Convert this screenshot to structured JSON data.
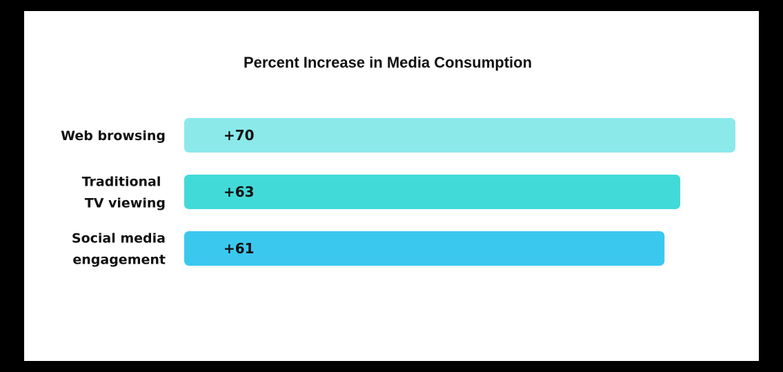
{
  "chart_data": {
    "type": "bar",
    "orientation": "horizontal",
    "title": "Percent Increase in Media Consumption",
    "categories": [
      [
        "Web browsing"
      ],
      [
        "Traditional ",
        "TV viewing"
      ],
      [
        "Social media",
        "engagement"
      ]
    ],
    "values": [
      70,
      63,
      61
    ],
    "value_labels": [
      "+70",
      "+63",
      "+61"
    ],
    "colors": [
      "#8BE9EA",
      "#41DAD8",
      "#3BC8EF"
    ],
    "xlim": [
      0,
      70
    ],
    "xlabel": "",
    "ylabel": "",
    "grid": false,
    "legend": "none"
  }
}
